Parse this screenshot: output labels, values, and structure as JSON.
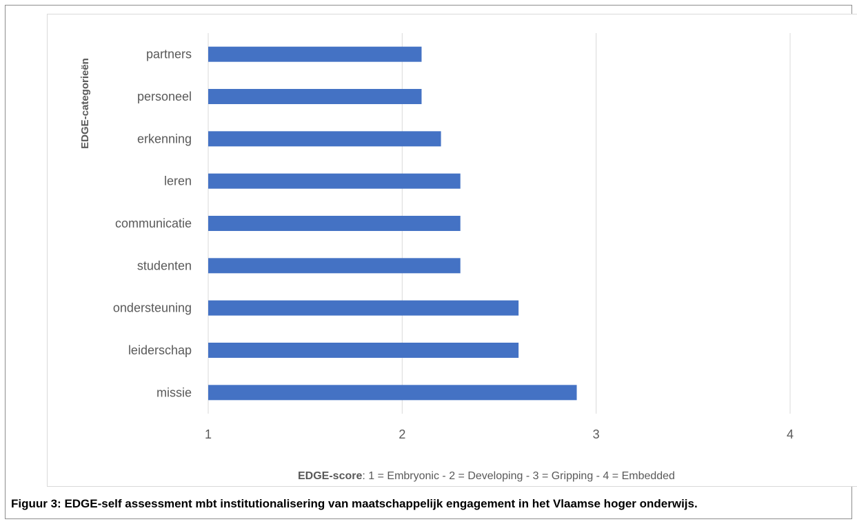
{
  "chart_data": {
    "type": "bar",
    "orientation": "horizontal",
    "categories": [
      "partners",
      "personeel",
      "erkenning",
      "leren",
      "communicatie",
      "studenten",
      "ondersteuning",
      "leiderschap",
      "missie"
    ],
    "values": [
      2.1,
      2.1,
      2.2,
      2.3,
      2.3,
      2.3,
      2.6,
      2.6,
      2.9
    ],
    "xlim": [
      1,
      4
    ],
    "xticks": [
      "1",
      "2",
      "3",
      "4"
    ],
    "ylabel": "EDGE-categorieën",
    "xlabel_bold": "EDGE-score",
    "xlabel_rest": ": 1 = Embryonic - 2 = Developing - 3 =  Gripping - 4 = Embedded",
    "bar_color": "#4472c4",
    "grid": true,
    "legend": "none"
  },
  "caption": "Figuur 3: EDGE-self assessment mbt institutionalisering van maatschappelijk engagement in het Vlaamse hoger onderwijs."
}
